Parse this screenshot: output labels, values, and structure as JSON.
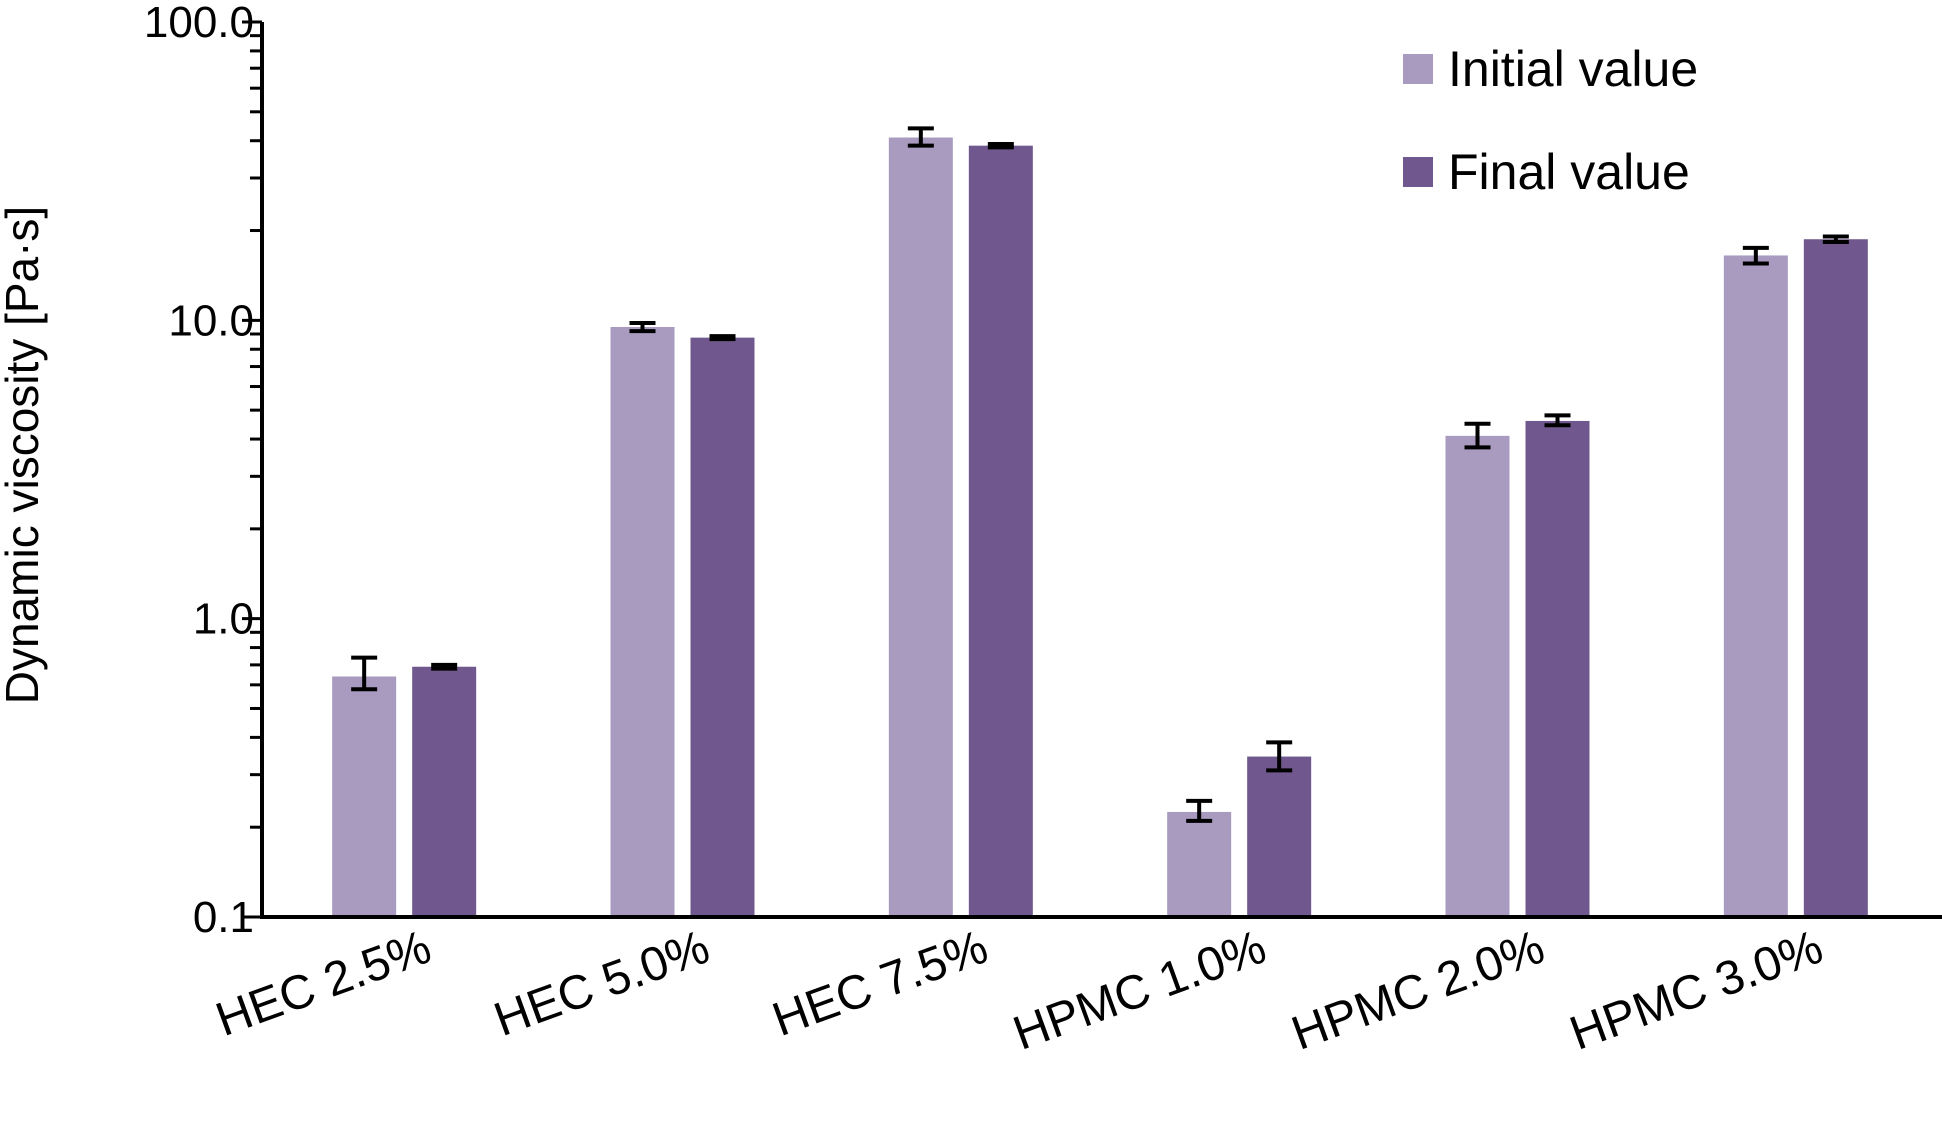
{
  "chart_data": {
    "type": "bar",
    "title": "",
    "xlabel": "",
    "ylabel": "Dynamic viscosity [Pa·s]",
    "yscale": "log",
    "ylim": [
      0.1,
      100
    ],
    "yticks": [
      {
        "value": 0.1,
        "label": "0.1"
      },
      {
        "value": 1,
        "label": "1.0"
      },
      {
        "value": 10,
        "label": "10.0"
      },
      {
        "value": 100,
        "label": "100.0"
      }
    ],
    "categories": [
      "HEC 2.5%",
      "HEC 5.0%",
      "HEC 7.5%",
      "HPMC 1.0%",
      "HPMC 2.0%",
      "HPMC 3.0%"
    ],
    "series": [
      {
        "name": "Initial value",
        "color": "#a99bbf",
        "values": [
          0.64,
          9.5,
          41,
          0.225,
          4.1,
          16.5
        ],
        "error_low": [
          0.58,
          9.2,
          38.5,
          0.21,
          3.75,
          15.5
        ],
        "error_high": [
          0.74,
          9.8,
          44,
          0.245,
          4.5,
          17.5
        ]
      },
      {
        "name": "Final value",
        "color": "#70588e",
        "values": [
          0.69,
          8.75,
          38.5,
          0.345,
          4.6,
          18.7
        ],
        "error_low": [
          0.68,
          8.65,
          38.0,
          0.31,
          4.45,
          18.3
        ],
        "error_high": [
          0.7,
          8.85,
          39.0,
          0.385,
          4.8,
          19.1
        ]
      }
    ],
    "grid": false,
    "legend_position": "top-right"
  }
}
